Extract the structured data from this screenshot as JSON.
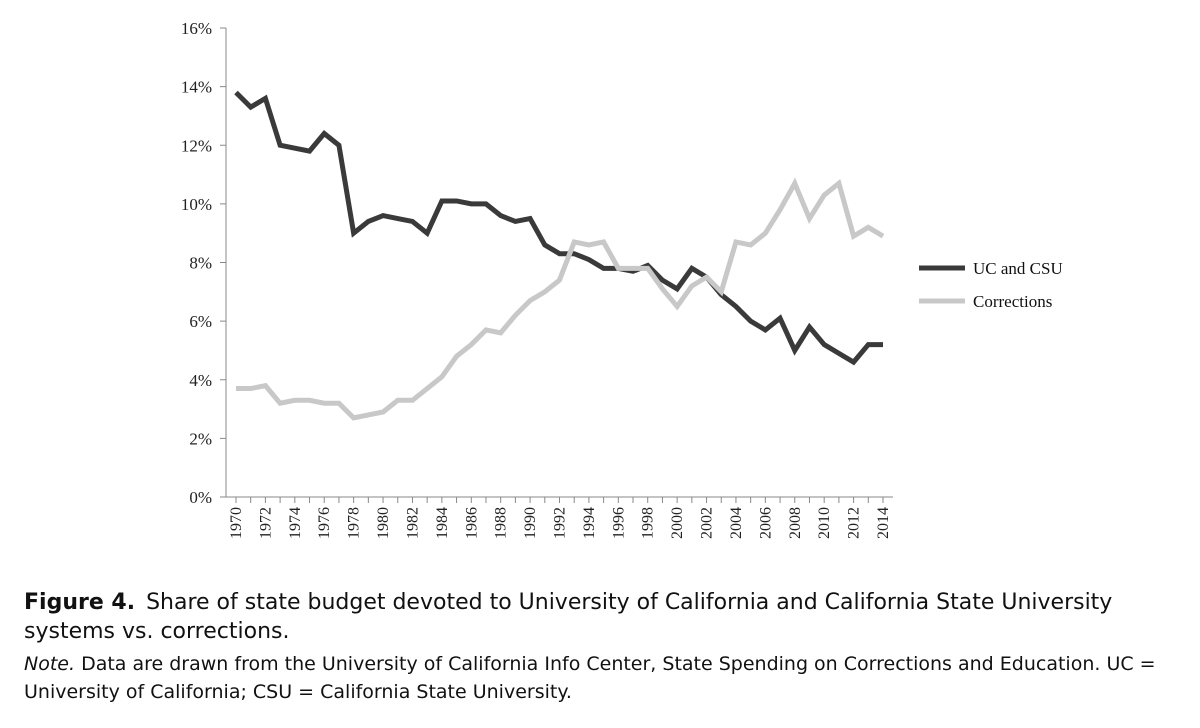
{
  "chart_data": {
    "type": "line",
    "x": [
      1970,
      1971,
      1972,
      1973,
      1974,
      1975,
      1976,
      1977,
      1978,
      1979,
      1980,
      1981,
      1982,
      1983,
      1984,
      1985,
      1986,
      1987,
      1988,
      1989,
      1990,
      1991,
      1992,
      1993,
      1994,
      1995,
      1996,
      1997,
      1998,
      1999,
      2000,
      2001,
      2002,
      2003,
      2004,
      2005,
      2006,
      2007,
      2008,
      2009,
      2010,
      2011,
      2012,
      2013,
      2014
    ],
    "xtick_labels": [
      "1970",
      "1972",
      "1974",
      "1976",
      "1978",
      "1980",
      "1982",
      "1984",
      "1986",
      "1988",
      "1990",
      "1992",
      "1994",
      "1996",
      "1998",
      "2000",
      "2002",
      "2004",
      "2006",
      "2008",
      "2010",
      "2012",
      "2014"
    ],
    "ytick_labels": [
      "0%",
      "2%",
      "4%",
      "6%",
      "8%",
      "10%",
      "12%",
      "14%",
      "16%"
    ],
    "ylim": [
      0,
      16
    ],
    "grid": false,
    "legend_position": "right",
    "series": [
      {
        "name": "UC and CSU",
        "color": "#3a3a3a",
        "values": [
          13.8,
          13.3,
          13.6,
          12.0,
          11.9,
          11.8,
          12.4,
          12.0,
          9.0,
          9.4,
          9.6,
          9.5,
          9.4,
          9.0,
          10.1,
          10.1,
          10.0,
          10.0,
          9.6,
          9.4,
          9.5,
          8.6,
          8.3,
          8.3,
          8.1,
          7.8,
          7.8,
          7.7,
          7.9,
          7.4,
          7.1,
          7.8,
          7.5,
          6.9,
          6.5,
          6.0,
          5.7,
          6.1,
          5.0,
          5.8,
          5.2,
          4.9,
          4.6,
          5.2,
          5.2
        ]
      },
      {
        "name": "Corrections",
        "color": "#c8c8c8",
        "values": [
          3.7,
          3.7,
          3.8,
          3.2,
          3.3,
          3.3,
          3.2,
          3.2,
          2.7,
          2.8,
          2.9,
          3.3,
          3.3,
          3.7,
          4.1,
          4.8,
          5.2,
          5.7,
          5.6,
          6.2,
          6.7,
          7.0,
          7.4,
          8.7,
          8.6,
          8.7,
          7.8,
          7.8,
          7.8,
          7.1,
          6.5,
          7.2,
          7.5,
          7.0,
          8.7,
          8.6,
          9.0,
          9.8,
          10.7,
          9.5,
          10.3,
          10.7,
          8.9,
          9.2,
          8.9
        ]
      }
    ]
  },
  "caption": {
    "figure_label": "Figure 4.",
    "title": "Share of state budget devoted to University of California and California State University systems vs. corrections.",
    "note_label": "Note.",
    "note_text": "Data are drawn from the University of California Info Center, State Spending on Corrections and Education. UC = University of California; CSU = California State University."
  }
}
